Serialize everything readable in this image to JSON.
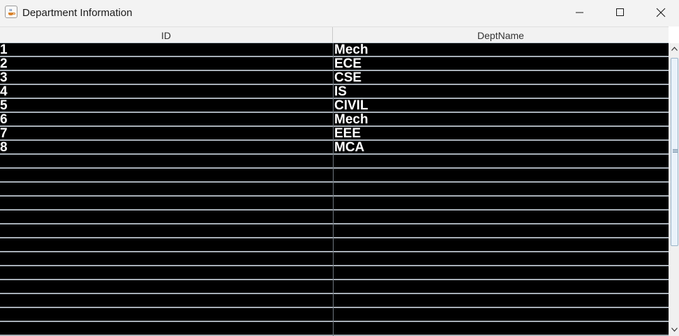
{
  "window": {
    "title": "Department Information",
    "icon": "java-cup-icon"
  },
  "controls": {
    "minimize_icon": "minimize-icon",
    "maximize_icon": "maximize-icon",
    "close_icon": "close-icon"
  },
  "table": {
    "columns": [
      "ID",
      "DeptName"
    ],
    "rows": [
      {
        "id": "1",
        "name": "Mech"
      },
      {
        "id": "2",
        "name": "ECE"
      },
      {
        "id": "3",
        "name": "CSE"
      },
      {
        "id": "4",
        "name": "IS"
      },
      {
        "id": "5",
        "name": "CIVIL"
      },
      {
        "id": "6",
        "name": "Mech"
      },
      {
        "id": "7",
        "name": "EEE"
      },
      {
        "id": "8",
        "name": "MCA"
      },
      {
        "id": "",
        "name": ""
      },
      {
        "id": "",
        "name": ""
      },
      {
        "id": "",
        "name": ""
      },
      {
        "id": "",
        "name": ""
      },
      {
        "id": "",
        "name": ""
      },
      {
        "id": "",
        "name": ""
      },
      {
        "id": "",
        "name": ""
      },
      {
        "id": "",
        "name": ""
      },
      {
        "id": "",
        "name": ""
      },
      {
        "id": "",
        "name": ""
      },
      {
        "id": "",
        "name": ""
      },
      {
        "id": "",
        "name": ""
      },
      {
        "id": "",
        "name": ""
      }
    ]
  },
  "colors": {
    "row_background": "#000000",
    "cell_text": "#ffffff",
    "grid_line": "#a8b0b8",
    "header_background": "#f2f2f2"
  }
}
